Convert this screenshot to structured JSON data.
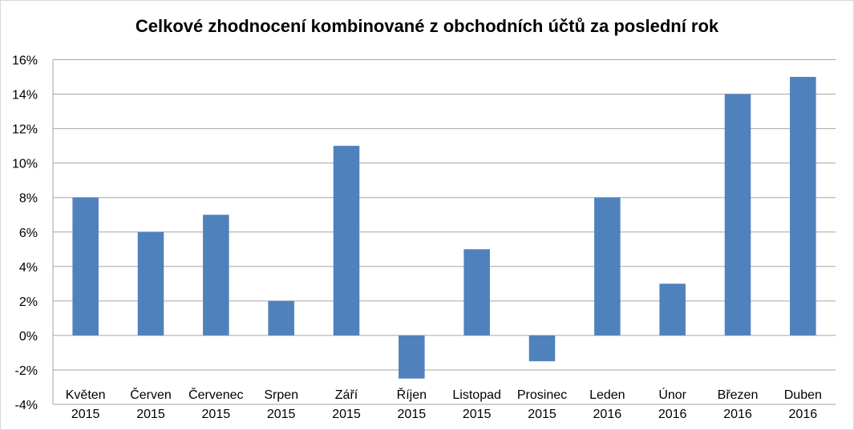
{
  "chart_data": {
    "type": "bar",
    "title": "Celkové zhodnocení kombinované z obchodních účtů za poslední rok",
    "xlabel": "",
    "ylabel": "",
    "categories": [
      [
        "Květen",
        "2015"
      ],
      [
        "Červen",
        "2015"
      ],
      [
        "Červenec",
        "2015"
      ],
      [
        "Srpen",
        "2015"
      ],
      [
        "Září",
        "2015"
      ],
      [
        "Říjen",
        "2015"
      ],
      [
        "Listopad",
        "2015"
      ],
      [
        "Prosinec",
        "2015"
      ],
      [
        "Leden",
        "2016"
      ],
      [
        "Únor",
        "2016"
      ],
      [
        "Březen",
        "2016"
      ],
      [
        "Duben",
        "2016"
      ]
    ],
    "values": [
      8,
      6,
      7,
      2,
      11,
      -2.5,
      5,
      -1.5,
      8,
      3,
      14,
      15
    ],
    "value_unit": "%",
    "ylim": [
      -4,
      16
    ],
    "yticks": [
      -4,
      -2,
      0,
      2,
      4,
      6,
      8,
      10,
      12,
      14,
      16
    ],
    "ytick_labels": [
      "-4%",
      "-2%",
      "0%",
      "2%",
      "4%",
      "6%",
      "8%",
      "10%",
      "12%",
      "14%",
      "16%"
    ],
    "grid": true,
    "legend": "none",
    "bar_color": "#4f81bd",
    "grid_color": "#a6a6a6"
  }
}
